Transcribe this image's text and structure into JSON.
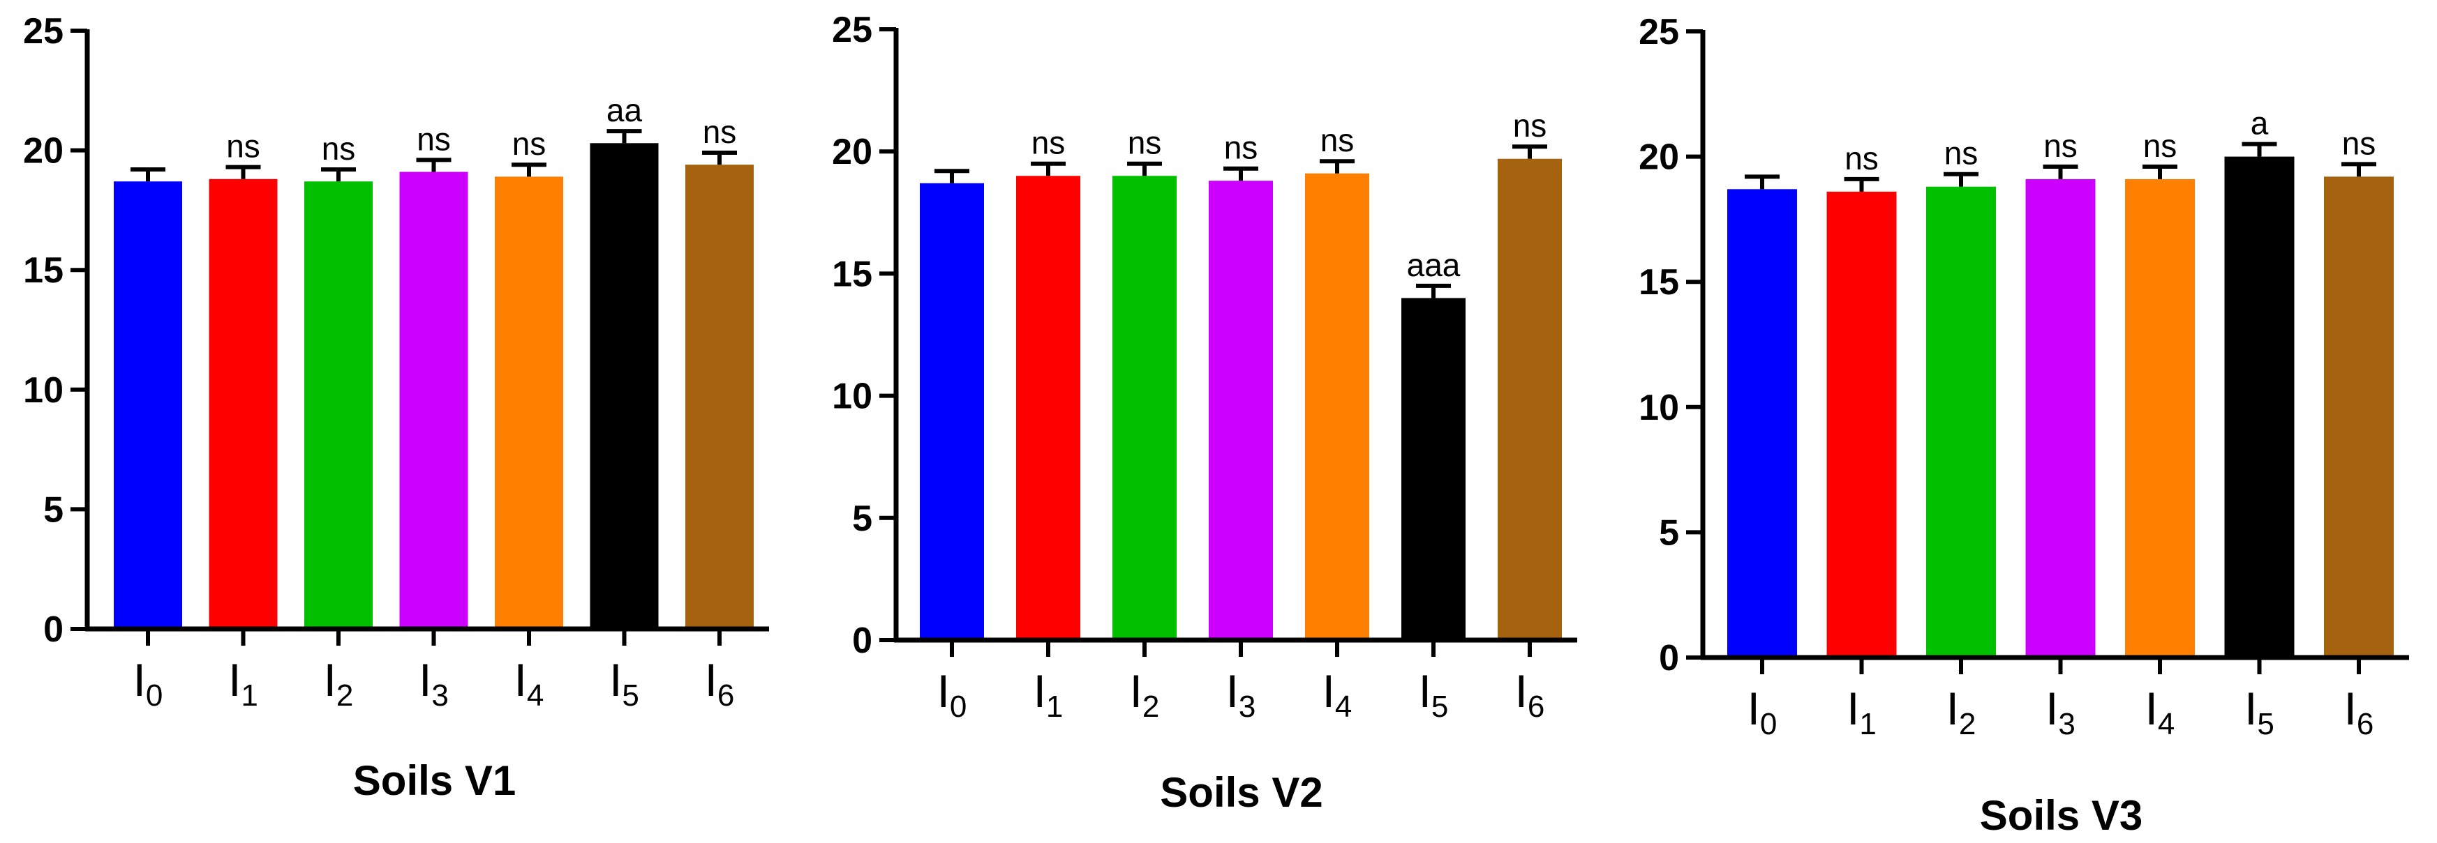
{
  "colors": {
    "bars": [
      "#0000ff",
      "#ff0000",
      "#00c000",
      "#cc00ff",
      "#ff8000",
      "#000000",
      "#a5620f"
    ],
    "axis": "#000000",
    "error_bar": "#000000"
  },
  "chart_data": [
    {
      "type": "bar",
      "title": "Soils V1",
      "categories": [
        {
          "base": "I",
          "sub": "0"
        },
        {
          "base": "I",
          "sub": "1"
        },
        {
          "base": "I",
          "sub": "2"
        },
        {
          "base": "I",
          "sub": "3"
        },
        {
          "base": "I",
          "sub": "4"
        },
        {
          "base": "I",
          "sub": "5"
        },
        {
          "base": "I",
          "sub": "6"
        }
      ],
      "values": [
        18.7,
        18.8,
        18.7,
        19.1,
        18.9,
        20.3,
        19.4
      ],
      "errors": [
        0.5,
        0.5,
        0.5,
        0.5,
        0.5,
        0.5,
        0.5
      ],
      "significance": [
        "",
        "ns",
        "ns",
        "ns",
        "ns",
        "aa",
        "ns"
      ],
      "ylim": [
        0,
        25
      ],
      "yticks": [
        0,
        5,
        10,
        15,
        20,
        25
      ],
      "xlabel": "",
      "ylabel": "",
      "grid": false
    },
    {
      "type": "bar",
      "title": "Soils V2",
      "categories": [
        {
          "base": "I",
          "sub": "0"
        },
        {
          "base": "I",
          "sub": "1"
        },
        {
          "base": "I",
          "sub": "2"
        },
        {
          "base": "I",
          "sub": "3"
        },
        {
          "base": "I",
          "sub": "4"
        },
        {
          "base": "I",
          "sub": "5"
        },
        {
          "base": "I",
          "sub": "6"
        }
      ],
      "values": [
        18.7,
        19.0,
        19.0,
        18.8,
        19.1,
        14.0,
        19.7
      ],
      "errors": [
        0.5,
        0.5,
        0.5,
        0.5,
        0.5,
        0.5,
        0.5
      ],
      "significance": [
        "",
        "ns",
        "ns",
        "ns",
        "ns",
        "aaa",
        "ns"
      ],
      "ylim": [
        0,
        25
      ],
      "yticks": [
        0,
        5,
        10,
        15,
        20,
        25
      ],
      "xlabel": "",
      "ylabel": "",
      "grid": false
    },
    {
      "type": "bar",
      "title": "Soils V3",
      "categories": [
        {
          "base": "I",
          "sub": "0"
        },
        {
          "base": "I",
          "sub": "1"
        },
        {
          "base": "I",
          "sub": "2"
        },
        {
          "base": "I",
          "sub": "3"
        },
        {
          "base": "I",
          "sub": "4"
        },
        {
          "base": "I",
          "sub": "5"
        },
        {
          "base": "I",
          "sub": "6"
        }
      ],
      "values": [
        18.7,
        18.6,
        18.8,
        19.1,
        19.1,
        20.0,
        19.2
      ],
      "errors": [
        0.5,
        0.5,
        0.5,
        0.5,
        0.5,
        0.5,
        0.5
      ],
      "significance": [
        "",
        "ns",
        "ns",
        "ns",
        "ns",
        "a",
        "ns"
      ],
      "ylim": [
        0,
        25
      ],
      "yticks": [
        0,
        5,
        10,
        15,
        20,
        25
      ],
      "xlabel": "",
      "ylabel": "",
      "grid": false
    }
  ]
}
